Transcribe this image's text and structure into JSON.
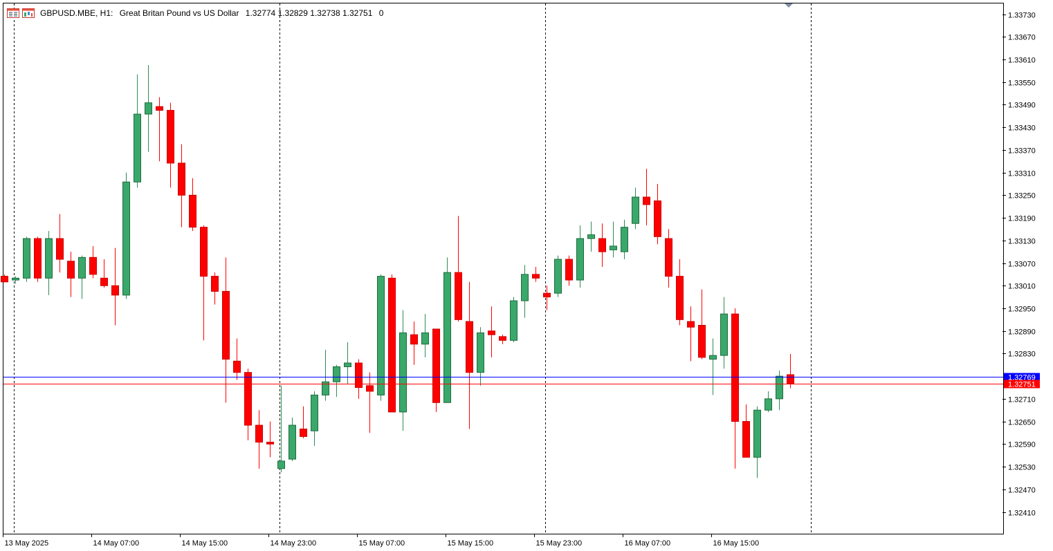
{
  "header": {
    "symbol": "GBPUSD.MBE, H1:",
    "description": "Great Britan Pound vs US Dollar",
    "open": "1.32774",
    "high": "1.32829",
    "low": "1.32738",
    "close": "1.32751",
    "volume": "0",
    "icons": [
      "chart-window-icon",
      "chart-properties-icon"
    ]
  },
  "colors": {
    "bull": "#3aa86a",
    "bear": "#ff0000",
    "bid_line": "#ff0000",
    "ask_line": "#0000ff",
    "grid": "#000000",
    "axis_text": "#000000"
  },
  "chart_data": {
    "type": "candlestick",
    "symbol": "GBPUSD.MBE",
    "timeframe": "H1",
    "ylim": [
      1.3236,
      1.3376
    ],
    "y_ticks": [
      "1.33730",
      "1.33670",
      "1.33610",
      "1.33550",
      "1.33490",
      "1.33430",
      "1.33370",
      "1.33310",
      "1.33250",
      "1.33190",
      "1.33130",
      "1.33070",
      "1.33010",
      "1.32950",
      "1.32890",
      "1.32830",
      "1.32710",
      "1.32650",
      "1.32590",
      "1.32530",
      "1.32470",
      "1.32410"
    ],
    "x_labels": [
      {
        "label": "13 May 2025",
        "index": 0
      },
      {
        "label": "14 May 07:00",
        "index": 8
      },
      {
        "label": "14 May 15:00",
        "index": 16
      },
      {
        "label": "14 May 23:00",
        "index": 24
      },
      {
        "label": "15 May 07:00",
        "index": 32
      },
      {
        "label": "15 May 15:00",
        "index": 40
      },
      {
        "label": "15 May 23:00",
        "index": 48
      },
      {
        "label": "16 May 07:00",
        "index": 56
      },
      {
        "label": "16 May 15:00",
        "index": 64
      }
    ],
    "day_separators": [
      1,
      25,
      49,
      73
    ],
    "ask_price": "1.32769",
    "bid_price": "1.32751",
    "ask_value": 1.32769,
    "bid_value": 1.32751,
    "candles": [
      [
        1.33035,
        1.3304,
        1.3302,
        1.3302
      ],
      [
        1.33025,
        1.33035,
        1.33015,
        1.3303
      ],
      [
        1.3303,
        1.3314,
        1.3302,
        1.33135
      ],
      [
        1.33135,
        1.3314,
        1.3302,
        1.3303
      ],
      [
        1.3303,
        1.33155,
        1.32985,
        1.33135
      ],
      [
        1.33135,
        1.332,
        1.33045,
        1.3308
      ],
      [
        1.33075,
        1.331,
        1.3298,
        1.3303
      ],
      [
        1.3303,
        1.3309,
        1.32975,
        1.33085
      ],
      [
        1.33085,
        1.33115,
        1.3303,
        1.3304
      ],
      [
        1.3303,
        1.3308,
        1.33005,
        1.3301
      ],
      [
        1.3301,
        1.3311,
        1.32905,
        1.32985
      ],
      [
        1.32985,
        1.3331,
        1.32975,
        1.33285
      ],
      [
        1.33285,
        1.3357,
        1.3327,
        1.33465
      ],
      [
        1.33465,
        1.33595,
        1.33365,
        1.33495
      ],
      [
        1.33485,
        1.3351,
        1.3334,
        1.33475
      ],
      [
        1.33475,
        1.33495,
        1.3327,
        1.33335
      ],
      [
        1.33335,
        1.33385,
        1.33165,
        1.3325
      ],
      [
        1.3325,
        1.33295,
        1.33155,
        1.33165
      ],
      [
        1.33165,
        1.3317,
        1.32865,
        1.33035
      ],
      [
        1.33035,
        1.33045,
        1.3296,
        1.32995
      ],
      [
        1.32995,
        1.33085,
        1.327,
        1.32815
      ],
      [
        1.3281,
        1.3287,
        1.3276,
        1.3278
      ],
      [
        1.3278,
        1.3279,
        1.326,
        1.3264
      ],
      [
        1.3264,
        1.3268,
        1.32525,
        1.32595
      ],
      [
        1.32595,
        1.3265,
        1.32555,
        1.3259
      ],
      [
        1.32525,
        1.32745,
        1.32515,
        1.32545
      ],
      [
        1.3255,
        1.3266,
        1.32545,
        1.3264
      ],
      [
        1.3263,
        1.3269,
        1.32605,
        1.3261
      ],
      [
        1.32625,
        1.3273,
        1.32585,
        1.3272
      ],
      [
        1.3272,
        1.3284,
        1.32705,
        1.32755
      ],
      [
        1.32755,
        1.328,
        1.32715,
        1.32795
      ],
      [
        1.32795,
        1.3286,
        1.3275,
        1.32805
      ],
      [
        1.32805,
        1.32815,
        1.3271,
        1.3274
      ],
      [
        1.32745,
        1.3278,
        1.3262,
        1.3273
      ],
      [
        1.3272,
        1.3304,
        1.32705,
        1.33035
      ],
      [
        1.3303,
        1.3304,
        1.32675,
        1.32675
      ],
      [
        1.32675,
        1.32945,
        1.32625,
        1.32885
      ],
      [
        1.3288,
        1.32915,
        1.328,
        1.32855
      ],
      [
        1.32855,
        1.32935,
        1.3282,
        1.32885
      ],
      [
        1.32895,
        1.32895,
        1.32675,
        1.327
      ],
      [
        1.327,
        1.33085,
        1.327,
        1.33045
      ],
      [
        1.33045,
        1.33195,
        1.32915,
        1.3292
      ],
      [
        1.32915,
        1.3302,
        1.3263,
        1.3278
      ],
      [
        1.3278,
        1.329,
        1.32745,
        1.32885
      ],
      [
        1.3289,
        1.32955,
        1.3282,
        1.3288
      ],
      [
        1.32875,
        1.3288,
        1.32855,
        1.32865
      ],
      [
        1.32865,
        1.3298,
        1.3286,
        1.3297
      ],
      [
        1.3297,
        1.33065,
        1.32925,
        1.3304
      ],
      [
        1.3304,
        1.3306,
        1.3302,
        1.3303
      ],
      [
        1.3299,
        1.3301,
        1.32945,
        1.3298
      ],
      [
        1.3299,
        1.3309,
        1.3298,
        1.3308
      ],
      [
        1.3308,
        1.3309,
        1.3301,
        1.33025
      ],
      [
        1.33025,
        1.3317,
        1.33005,
        1.33135
      ],
      [
        1.33135,
        1.3318,
        1.331,
        1.33145
      ],
      [
        1.33135,
        1.33175,
        1.3306,
        1.331
      ],
      [
        1.33105,
        1.3318,
        1.33085,
        1.33115
      ],
      [
        1.331,
        1.33185,
        1.3308,
        1.33165
      ],
      [
        1.33175,
        1.3327,
        1.3316,
        1.33245
      ],
      [
        1.33245,
        1.3332,
        1.3317,
        1.33225
      ],
      [
        1.33235,
        1.3328,
        1.3312,
        1.3314
      ],
      [
        1.33135,
        1.3316,
        1.33005,
        1.33035
      ],
      [
        1.33035,
        1.3308,
        1.32905,
        1.3292
      ],
      [
        1.32915,
        1.32955,
        1.3281,
        1.329
      ],
      [
        1.32905,
        1.33,
        1.32815,
        1.3282
      ],
      [
        1.32815,
        1.3287,
        1.3272,
        1.32825
      ],
      [
        1.32825,
        1.3298,
        1.3279,
        1.32935
      ],
      [
        1.32935,
        1.3295,
        1.32525,
        1.3265
      ],
      [
        1.3265,
        1.32695,
        1.32555,
        1.32555
      ],
      [
        1.32555,
        1.3269,
        1.325,
        1.3268
      ],
      [
        1.3268,
        1.3273,
        1.32675,
        1.3271
      ],
      [
        1.3271,
        1.32785,
        1.3268,
        1.3277
      ],
      [
        1.32774,
        1.32829,
        1.32738,
        1.32751
      ]
    ]
  }
}
